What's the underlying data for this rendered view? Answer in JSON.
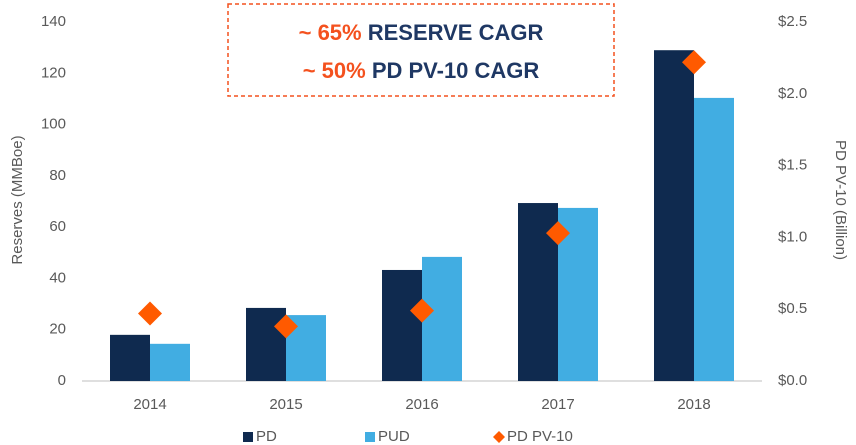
{
  "chart_data": {
    "type": "bar",
    "categories": [
      "2014",
      "2015",
      "2016",
      "2017",
      "2018"
    ],
    "series": [
      {
        "name": "PD",
        "color": "#0f2a4f",
        "values": [
          18,
          28.5,
          43.3,
          69.4,
          129
        ]
      },
      {
        "name": "PUD",
        "color": "#41ade2",
        "values": [
          14.5,
          25.7,
          48.4,
          67.5,
          110.4
        ]
      },
      {
        "name": "PD PV-10",
        "color": "#ff5a00",
        "type": "scatter",
        "marker": "diamond",
        "axis": "y2",
        "values": [
          0.47,
          0.38,
          0.49,
          1.03,
          2.22
        ]
      }
    ],
    "ylabel": "Reserves (MMBoe)",
    "y2label": "PD PV-10 (Billion)",
    "ylim": [
      0,
      140
    ],
    "yticks": [
      0,
      20,
      40,
      60,
      80,
      100,
      120,
      140
    ],
    "y2lim": [
      0,
      2.5
    ],
    "y2ticks": [
      {
        "value": 0,
        "label": "$0.0"
      },
      {
        "value": 0.5,
        "label": "$0.5"
      },
      {
        "value": 1,
        "label": "$1.0"
      },
      {
        "value": 1.5,
        "label": "$1.5"
      },
      {
        "value": 2,
        "label": "$2.0"
      },
      {
        "value": 2.5,
        "label": "$2.5"
      }
    ],
    "annotations": [
      {
        "highlight": "~ 65%",
        "text": "RESERVE CAGR"
      },
      {
        "highlight": "~ 50%",
        "text": "PD PV-10 CAGR"
      }
    ],
    "legend": "bottom",
    "grid": false
  }
}
